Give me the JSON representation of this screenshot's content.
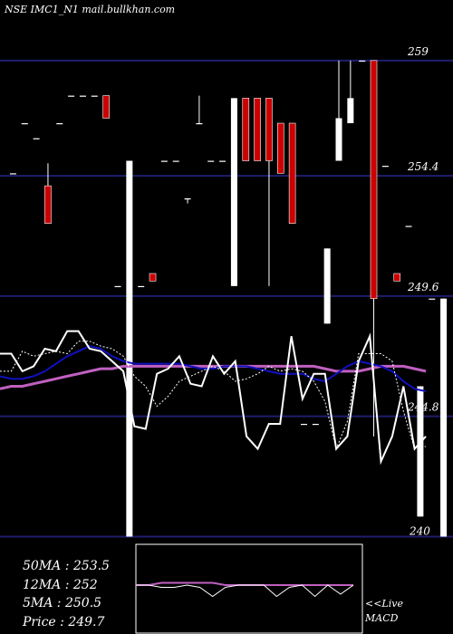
{
  "title": "NSE IMC1_N1 mail.bullkhan.com",
  "colors": {
    "background": "#000000",
    "grid": "#1e1e6e",
    "up_candle": "#ffffff",
    "down_candle": "#cc0000",
    "ma_long": "#c060c0",
    "ma_mid": "#1010c0",
    "ma_short": "#ffffff",
    "price_line": "#ffffff"
  },
  "chart_data": {
    "type": "candlestick",
    "y_ticks": [
      259,
      254.4,
      249.6,
      244.8
    ],
    "y_tick_labels": [
      "259",
      "254.4",
      "249.6",
      "244.8"
    ],
    "ylim": [
      239.8,
      261.2
    ],
    "partial_bottom_label": "240",
    "candles": [
      {
        "o": 254.5,
        "c": 254.5,
        "h": 254.5,
        "l": 254.5
      },
      {
        "o": 256.5,
        "c": 256.5,
        "h": 256.5,
        "l": 256.5
      },
      {
        "o": 255.9,
        "c": 255.9,
        "h": 255.9,
        "l": 255.9
      },
      {
        "o": 254.0,
        "c": 252.5,
        "h": 254.9,
        "l": 252.5
      },
      {
        "o": 256.5,
        "c": 256.5,
        "h": 256.5,
        "l": 256.5
      },
      {
        "o": 257.6,
        "c": 257.6,
        "h": 257.6,
        "l": 257.6
      },
      {
        "o": 257.6,
        "c": 257.6,
        "h": 257.6,
        "l": 257.6
      },
      {
        "o": 257.6,
        "c": 257.6,
        "h": 257.6,
        "l": 257.6
      },
      {
        "o": 257.6,
        "c": 256.7,
        "h": 257.6,
        "l": 256.7
      },
      {
        "o": 250.0,
        "c": 250.0,
        "h": 250.0,
        "l": 250.0
      },
      {
        "o": 240.0,
        "c": 255.0,
        "h": 255.0,
        "l": 240.0
      },
      {
        "o": 250.0,
        "c": 250.0,
        "h": 250.0,
        "l": 250.0
      },
      {
        "o": 250.5,
        "c": 250.2,
        "h": 250.5,
        "l": 250.2
      },
      {
        "o": 255.0,
        "c": 255.0,
        "h": 255.0,
        "l": 255.0
      },
      {
        "o": 255.0,
        "c": 255.0,
        "h": 255.0,
        "l": 255.0
      },
      {
        "o": 253.5,
        "c": 253.5,
        "h": 253.5,
        "l": 253.3
      },
      {
        "o": 256.5,
        "c": 256.5,
        "h": 257.6,
        "l": 256.5
      },
      {
        "o": 255.0,
        "c": 255.0,
        "h": 255.0,
        "l": 255.0
      },
      {
        "o": 255.0,
        "c": 255.0,
        "h": 255.0,
        "l": 255.0
      },
      {
        "o": 250.0,
        "c": 257.5,
        "h": 257.5,
        "l": 250.0
      },
      {
        "o": 257.5,
        "c": 255.0,
        "h": 257.5,
        "l": 255.0
      },
      {
        "o": 257.5,
        "c": 255.0,
        "h": 257.5,
        "l": 255.0
      },
      {
        "o": 257.5,
        "c": 255.0,
        "h": 257.5,
        "l": 250.0
      },
      {
        "o": 256.5,
        "c": 254.5,
        "h": 256.5,
        "l": 254.5
      },
      {
        "o": 256.5,
        "c": 252.5,
        "h": 256.5,
        "l": 252.5
      },
      {
        "o": 244.5,
        "c": 244.5,
        "h": 244.5,
        "l": 244.5
      },
      {
        "o": 244.5,
        "c": 244.5,
        "h": 244.5,
        "l": 244.5
      },
      {
        "o": 248.5,
        "c": 251.5,
        "h": 251.5,
        "l": 248.5
      },
      {
        "o": 255.0,
        "c": 256.7,
        "h": 259.0,
        "l": 255.0
      },
      {
        "o": 256.5,
        "c": 257.5,
        "h": 259.0,
        "l": 256.5
      },
      {
        "o": 259.0,
        "c": 259.0,
        "h": 259.0,
        "l": 259.0
      },
      {
        "o": 259.0,
        "c": 249.5,
        "h": 259.0,
        "l": 244.0
      },
      {
        "o": 254.8,
        "c": 254.8,
        "h": 254.8,
        "l": 254.8
      },
      {
        "o": 250.5,
        "c": 250.2,
        "h": 250.5,
        "l": 250.2
      },
      {
        "o": 252.4,
        "c": 252.4,
        "h": 252.4,
        "l": 252.4
      },
      {
        "o": 240.8,
        "c": 246.0,
        "h": 246.0,
        "l": 240.8
      },
      {
        "o": 249.5,
        "c": 249.5,
        "h": 249.5,
        "l": 249.5
      },
      {
        "o": 240.0,
        "c": 249.5,
        "h": 249.5,
        "l": 240.0
      }
    ],
    "lines_note": "dotted lines: moving averages and price line",
    "ma_long": [
      245.9,
      246.0,
      246.0,
      246.1,
      246.2,
      246.3,
      246.4,
      246.5,
      246.6,
      246.7,
      246.7,
      246.8,
      246.8,
      246.8,
      246.8,
      246.8,
      246.8,
      246.8,
      246.8,
      246.8,
      246.8,
      246.8,
      246.8,
      246.8,
      246.8,
      246.8,
      246.8,
      246.8,
      246.8,
      246.7,
      246.6,
      246.6,
      246.6,
      246.7,
      246.8,
      246.8,
      246.8,
      246.7,
      246.6
    ],
    "ma_mid": [
      246.4,
      246.3,
      246.3,
      246.4,
      246.6,
      246.9,
      247.2,
      247.4,
      247.6,
      247.5,
      247.2,
      247.0,
      246.9,
      246.9,
      246.9,
      246.9,
      246.9,
      246.8,
      246.7,
      246.7,
      246.8,
      246.8,
      246.8,
      246.7,
      246.6,
      246.5,
      246.5,
      246.5,
      246.3,
      246.2,
      246.5,
      246.8,
      247.0,
      246.9,
      246.8,
      246.6,
      246.2,
      245.9,
      245.8
    ],
    "ma_short": [
      246.6,
      246.6,
      247.4,
      247.2,
      247.3,
      247.4,
      247.3,
      247.8,
      247.8,
      247.6,
      247.5,
      247.2,
      246.4,
      246.0,
      245.2,
      245.6,
      246.2,
      246.4,
      246.6,
      246.8,
      246.6,
      246.2,
      246.3,
      246.5,
      246.8,
      246.6,
      246.7,
      246.6,
      246.2,
      245.4,
      243.5,
      244.6,
      247.3,
      247.3,
      247.3,
      247.0,
      245.0,
      243.5,
      243.6
    ],
    "price": [
      247.3,
      247.3,
      246.6,
      246.8,
      247.5,
      247.4,
      248.2,
      248.2,
      247.5,
      247.4,
      247.0,
      246.6,
      244.4,
      244.3,
      246.5,
      246.7,
      247.2,
      246.1,
      246.0,
      247.2,
      246.5,
      247.0,
      244.0,
      243.5,
      244.5,
      244.5,
      248.0,
      245.5,
      246.5,
      246.5,
      243.5,
      244.0,
      247.0,
      248.0,
      243.0,
      244.0,
      246.0,
      243.5,
      244.0
    ]
  },
  "stats": {
    "ma50": "50MA : 253.5",
    "ma12": "12MA : 252",
    "ma5": "5MA : 250.5",
    "price": "Price   : 249.7"
  },
  "indicator": {
    "label": "<<Live MACD",
    "line1": "<<Live",
    "line2": "MACD",
    "series_pink": [
      0.02,
      0.02,
      0.03,
      0.03,
      0.03,
      0.03,
      0.03,
      0.02,
      0.02,
      0.02,
      0.02,
      0.02,
      0.02,
      0.02,
      0.02,
      0.02,
      0.02,
      0.02
    ],
    "series_white": [
      0.02,
      0.02,
      0.01,
      0.01,
      0.02,
      0.01,
      -0.03,
      0.01,
      0.02,
      0.02,
      0.02,
      -0.03,
      0.01,
      0.02,
      -0.03,
      0.02,
      -0.02,
      0.02
    ]
  }
}
